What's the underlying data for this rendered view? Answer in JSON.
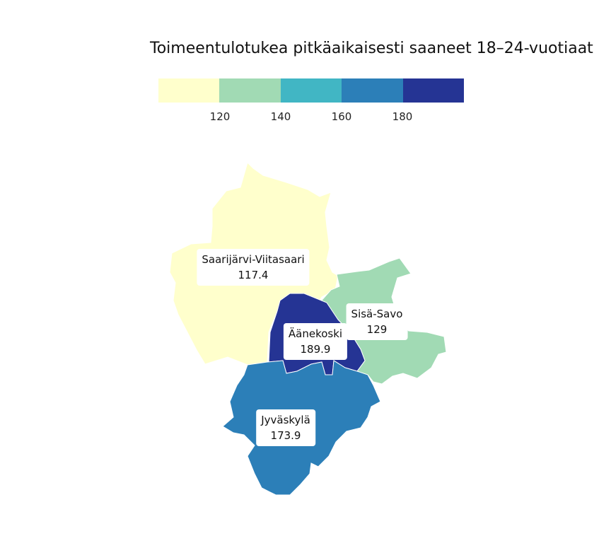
{
  "title": "Toimeentulotukea pitkäaikaisesti saaneet 18–24-vuotiaat",
  "legend": {
    "colors": [
      "#ffffcc",
      "#a1dab4",
      "#41b6c4",
      "#2c7fb8",
      "#253494"
    ],
    "ticks": [
      "120",
      "140",
      "160",
      "180"
    ]
  },
  "regions": [
    {
      "name": "Saarijärvi-Viitasaari",
      "value": "117.4",
      "color": "#ffffcc"
    },
    {
      "name": "Sisä-Savo",
      "value": "129",
      "color": "#a1dab4"
    },
    {
      "name": "Äänekoski",
      "value": "189.9",
      "color": "#253494"
    },
    {
      "name": "Jyväskylä",
      "value": "173.9",
      "color": "#2c7fb8"
    }
  ]
}
